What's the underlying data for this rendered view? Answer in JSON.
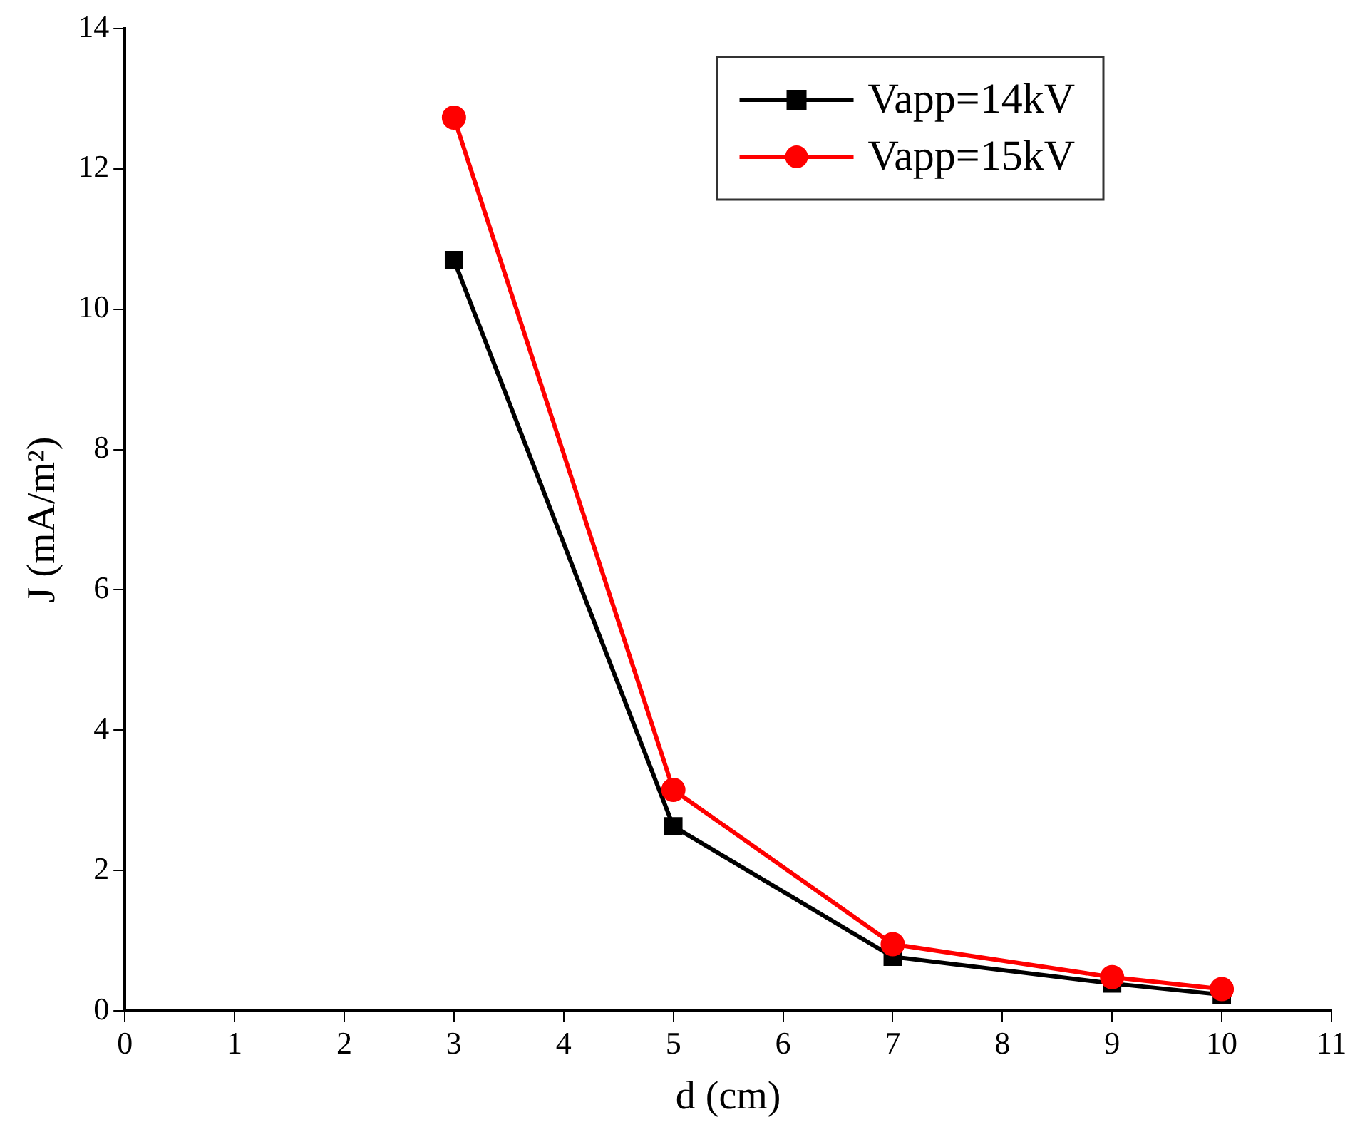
{
  "chart_data": {
    "type": "line",
    "xlabel": "d (cm)",
    "ylabel": "J (mA/m²)",
    "x": [
      3,
      5,
      7,
      9,
      10
    ],
    "series": [
      {
        "name": "Vapp=14kV",
        "color": "#000000",
        "marker": "square",
        "values": [
          10.7,
          2.63,
          0.77,
          0.39,
          0.23
        ]
      },
      {
        "name": "Vapp=15kV",
        "color": "#ff0000",
        "marker": "circle",
        "values": [
          12.73,
          3.15,
          0.95,
          0.48,
          0.31
        ]
      }
    ],
    "xlim": [
      0,
      11
    ],
    "xticks": [
      0,
      1,
      2,
      3,
      4,
      5,
      6,
      7,
      8,
      9,
      10,
      11
    ],
    "ylim": [
      0,
      14
    ],
    "yticks": [
      0,
      2,
      4,
      6,
      8,
      10,
      12,
      14
    ],
    "grid": false,
    "legend": "top right",
    "line_style": "solid"
  }
}
